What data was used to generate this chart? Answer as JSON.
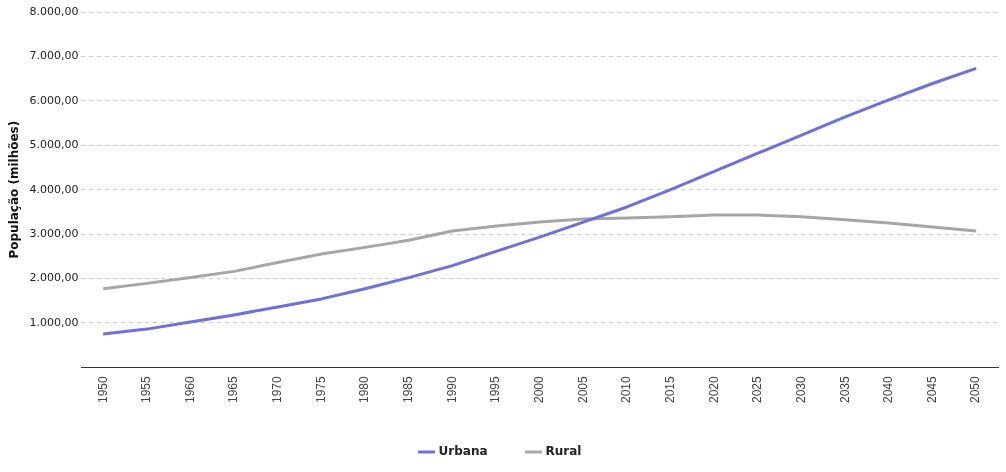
{
  "chart_data": {
    "type": "line",
    "ylabel": "População (milhões)",
    "categories": [
      "1950",
      "1955",
      "1960",
      "1965",
      "1970",
      "1975",
      "1980",
      "1985",
      "1990",
      "1995",
      "2000",
      "2005",
      "2010",
      "2015",
      "2020",
      "2025",
      "2030",
      "2035",
      "2040",
      "2045",
      "2050"
    ],
    "series": [
      {
        "name": "Urbana",
        "color": "#6b6fe8",
        "values": [
          750,
          860,
          1020,
          1180,
          1360,
          1540,
          1770,
          2020,
          2290,
          2610,
          2930,
          3270,
          3610,
          4000,
          4410,
          4820,
          5230,
          5640,
          6020,
          6390,
          6730
        ]
      },
      {
        "name": "Rural",
        "color": "#a6a6a6",
        "values": [
          1770,
          1890,
          2020,
          2160,
          2360,
          2550,
          2700,
          2860,
          3070,
          3180,
          3270,
          3340,
          3360,
          3390,
          3430,
          3430,
          3390,
          3320,
          3250,
          3160,
          3070
        ]
      }
    ],
    "ylim": [
      0,
      8000
    ],
    "yticks": [
      {
        "value": 0,
        "label": null
      },
      {
        "value": 1000,
        "label": "1.000,00"
      },
      {
        "value": 2000,
        "label": "2.000,00"
      },
      {
        "value": 3000,
        "label": "3.000,00"
      },
      {
        "value": 4000,
        "label": "4.000,00"
      },
      {
        "value": 5000,
        "label": "5.000,00"
      },
      {
        "value": 6000,
        "label": "6.000,00"
      },
      {
        "value": 7000,
        "label": "7.000,00"
      },
      {
        "value": 8000,
        "label": "8.000,00"
      }
    ],
    "grid": "y",
    "legend": "bottom",
    "marker": "none",
    "line_style": "solid"
  }
}
